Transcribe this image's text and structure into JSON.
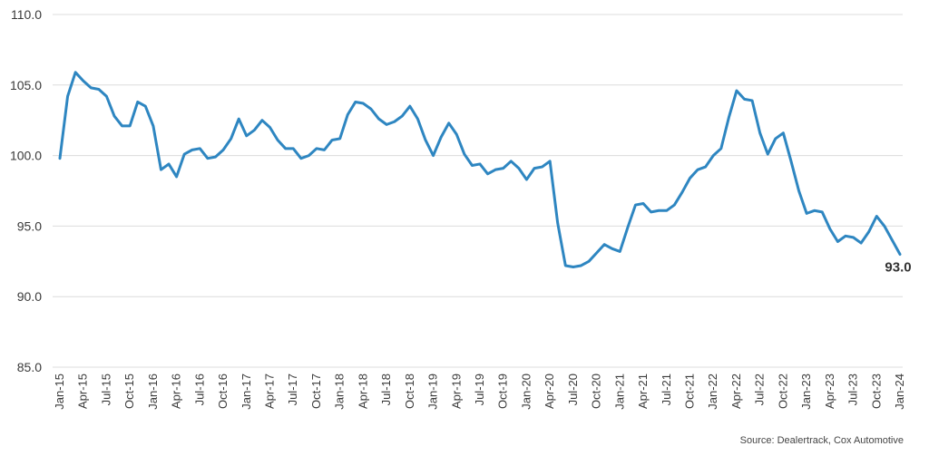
{
  "chart_data": {
    "type": "line",
    "ylim": [
      85,
      110
    ],
    "yticks": [
      "85.0",
      "90.0",
      "95.0",
      "100.0",
      "105.0",
      "110.0"
    ],
    "xtick_labels": [
      "Jan-15",
      "Apr-15",
      "Jul-15",
      "Oct-15",
      "Jan-16",
      "Apr-16",
      "Jul-16",
      "Oct-16",
      "Jan-17",
      "Apr-17",
      "Jul-17",
      "Oct-17",
      "Jan-18",
      "Apr-18",
      "Jul-18",
      "Oct-18",
      "Jan-19",
      "Apr-19",
      "Jul-19",
      "Oct-19",
      "Jan-20",
      "Apr-20",
      "Jul-20",
      "Oct-20",
      "Jan-21",
      "Apr-21",
      "Jul-21",
      "Oct-21",
      "Jan-22",
      "Apr-22",
      "Jul-22",
      "Oct-22",
      "Jan-23",
      "Apr-23",
      "Jul-23",
      "Oct-23",
      "Jan-24"
    ],
    "grid": true,
    "legend": "none",
    "series": [
      {
        "color": "#2e86c1",
        "values": [
          99.8,
          104.2,
          105.9,
          105.3,
          104.8,
          104.7,
          104.2,
          102.8,
          102.1,
          102.1,
          103.8,
          103.5,
          102.1,
          99.0,
          99.4,
          98.5,
          100.1,
          100.4,
          100.5,
          99.8,
          99.9,
          100.4,
          101.2,
          102.6,
          101.4,
          101.8,
          102.5,
          102.0,
          101.1,
          100.5,
          100.5,
          99.8,
          100.0,
          100.5,
          100.4,
          101.1,
          101.2,
          102.9,
          103.8,
          103.7,
          103.3,
          102.6,
          102.2,
          102.4,
          102.8,
          103.5,
          102.6,
          101.1,
          100.0,
          101.3,
          102.3,
          101.5,
          100.1,
          99.3,
          99.4,
          98.7,
          99.0,
          99.1,
          99.6,
          99.1,
          98.3,
          99.1,
          99.2,
          99.6,
          95.2,
          92.2,
          92.1,
          92.2,
          92.5,
          93.1,
          93.7,
          93.4,
          93.2,
          94.9,
          96.5,
          96.6,
          96.0,
          96.1,
          96.1,
          96.5,
          97.4,
          98.4,
          99.0,
          99.2,
          100.0,
          100.5,
          102.7,
          104.6,
          104.0,
          103.9,
          101.6,
          100.1,
          101.2,
          101.6,
          99.6,
          97.5,
          95.9,
          96.1,
          96.0,
          94.8,
          93.9,
          94.3,
          94.2,
          93.8,
          94.6,
          95.7,
          95.0,
          94.0,
          93.0
        ]
      }
    ],
    "end_label": "93.0"
  },
  "source": "Source: Dealertrack, Cox Automotive"
}
